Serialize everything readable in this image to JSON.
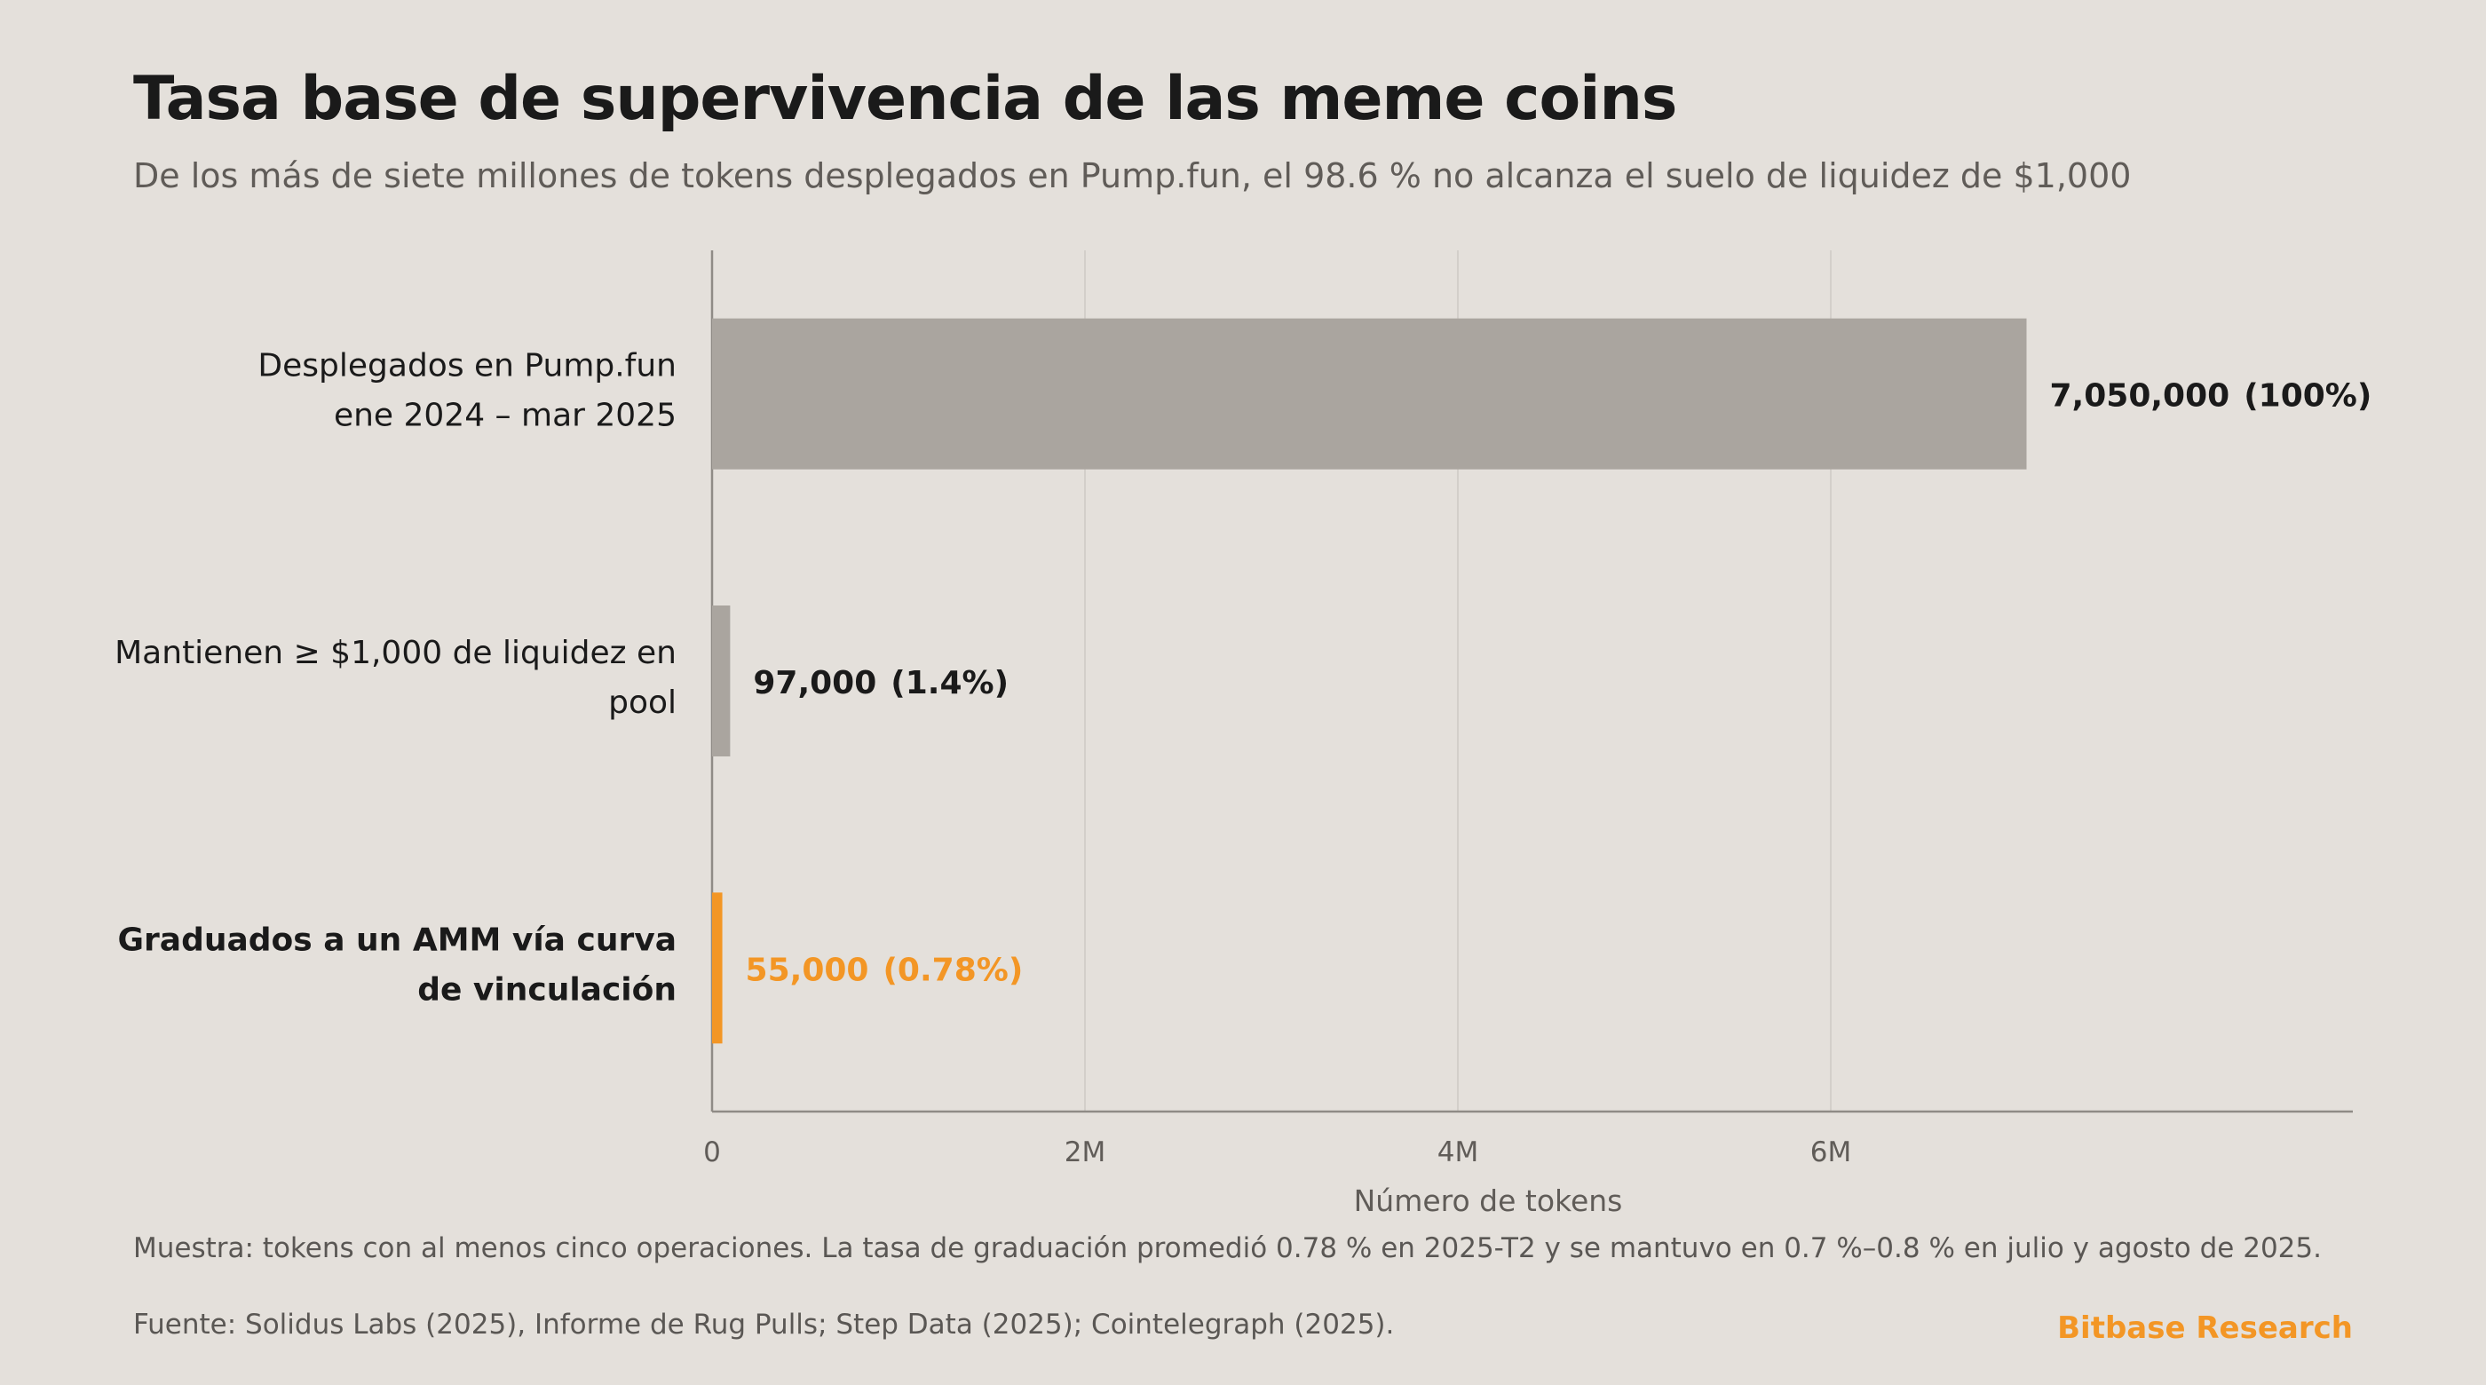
{
  "title": "Tasa base de supervivencia de las meme coins",
  "subtitle": "De los más de siete millones de tokens desplegados en Pump.fun, el 98.6 % no alcanza el suelo de liquidez de $1,000",
  "note": "Muestra: tokens con al menos cinco operaciones. La tasa de graduación promedió 0.78 % en 2025-T2 y se mantuvo en 0.7 %–0.8 % en julio y agosto de 2025.",
  "source": "Fuente: Solidus Labs (2025), Informe de Rug Pulls; Step Data (2025); Cointelegraph (2025).",
  "brand": "Bitbase Research",
  "colors": {
    "neutral_bar": "#aaa59f",
    "highlight_bar": "#f39625",
    "text_dark": "#1a1a1a",
    "text_muted": "#605c58",
    "gridline": "#d3cfca",
    "axis": "#8f8b86"
  },
  "chart_data": {
    "type": "bar",
    "orientation": "horizontal",
    "categories": [
      [
        "Desplegados en Pump.fun",
        "ene 2024 – mar 2025"
      ],
      [
        "Mantienen ≥ $1,000 de liquidez en",
        "pool"
      ],
      [
        "Graduados a un AMM vía curva",
        "de vinculación"
      ]
    ],
    "values": [
      7050000,
      97000,
      55000
    ],
    "value_labels": [
      "7,050,000",
      "97,000",
      "55,000"
    ],
    "percent_labels": [
      "(100%)",
      "(1.4%)",
      "(0.78%)"
    ],
    "highlight": [
      false,
      false,
      true
    ],
    "xlabel": "Número de tokens",
    "ylabel": "",
    "xlim": [
      0,
      8800000
    ],
    "xticks": [
      0,
      2000000,
      4000000,
      6000000
    ],
    "xtick_labels": [
      "0",
      "2M",
      "4M",
      "6M"
    ],
    "grid": true
  }
}
